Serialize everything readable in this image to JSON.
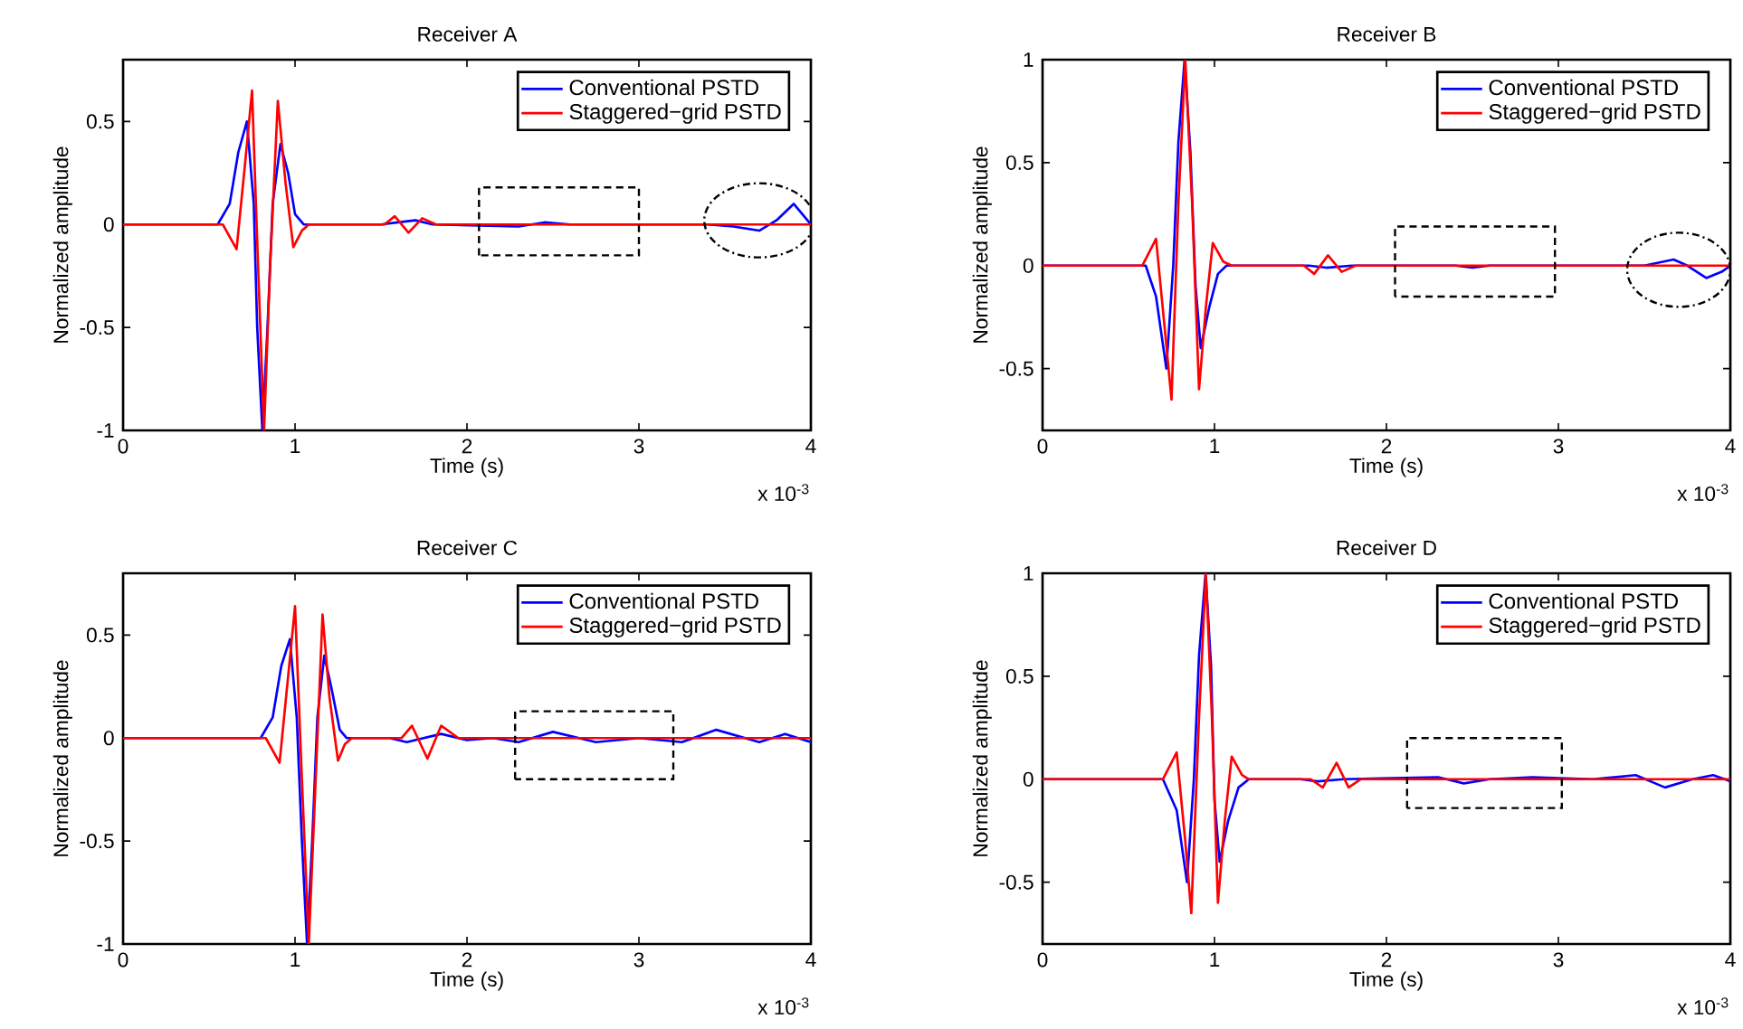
{
  "chart_data": [
    {
      "type": "line",
      "title": "Receiver A",
      "xlabel": "Time (s)",
      "ylabel": "Normalized amplitude",
      "annotations": [
        "x 10$^{-3}$"
      ],
      "legend": "top right",
      "xlim": [
        0,
        4
      ],
      "xticks": [
        0,
        1,
        2,
        3,
        4
      ],
      "ylim": [
        -1,
        0.8
      ],
      "yticks": [
        -1,
        -0.5,
        0,
        0.5
      ],
      "series": [
        {
          "name": "Conventional PSTD",
          "color": "#0000ff",
          "x": [
            0,
            0.55,
            0.62,
            0.67,
            0.72,
            0.76,
            0.78,
            0.81,
            0.84,
            0.87,
            0.915,
            0.96,
            1.0,
            1.05,
            1.5,
            1.6,
            1.7,
            1.8,
            2.3,
            2.45,
            2.6,
            3.4,
            3.55,
            3.7,
            3.8,
            3.9,
            4.0
          ],
          "values": [
            0,
            0,
            0.1,
            0.35,
            0.5,
            0.1,
            -0.5,
            -1,
            -0.5,
            0.1,
            0.39,
            0.25,
            0.05,
            0,
            0,
            0.01,
            0.02,
            0,
            -0.01,
            0.01,
            0,
            0,
            -0.01,
            -0.03,
            0.02,
            0.1,
            0
          ]
        },
        {
          "name": "Staggered−grid PSTD",
          "color": "#ff0000",
          "x": [
            0,
            0.58,
            0.66,
            0.71,
            0.75,
            0.785,
            0.82,
            0.855,
            0.9,
            0.945,
            0.99,
            1.04,
            1.08,
            1.52,
            1.58,
            1.66,
            1.74,
            1.82,
            4.0
          ],
          "values": [
            0,
            0,
            -0.12,
            0.3,
            0.65,
            -0.2,
            -1,
            -0.2,
            0.6,
            0.2,
            -0.11,
            -0.03,
            0,
            0,
            0.04,
            -0.04,
            0.03,
            0,
            0
          ]
        }
      ]
    },
    {
      "type": "line",
      "title": "Receiver B",
      "xlabel": "Time (s)",
      "ylabel": "Normalized amplitude",
      "annotations": [
        "x 10$^{-3}$"
      ],
      "legend": "top right",
      "xlim": [
        0,
        4
      ],
      "xticks": [
        0,
        1,
        2,
        3,
        4
      ],
      "ylim": [
        -0.8,
        1
      ],
      "yticks": [
        -0.5,
        0,
        0.5,
        1
      ],
      "series": [
        {
          "name": "Conventional PSTD",
          "color": "#0000ff",
          "x": [
            0,
            0.6,
            0.66,
            0.72,
            0.76,
            0.79,
            0.826,
            0.86,
            0.89,
            0.92,
            0.97,
            1.02,
            1.07,
            1.55,
            1.65,
            1.8,
            2.4,
            2.5,
            2.6,
            3.5,
            3.67,
            3.75,
            3.86,
            3.95,
            4.0
          ],
          "values": [
            0,
            0,
            -0.15,
            -0.5,
            0,
            0.6,
            1,
            0.55,
            -0.1,
            -0.4,
            -0.2,
            -0.04,
            0,
            0,
            -0.01,
            0,
            0,
            -0.01,
            0,
            0,
            0.03,
            0,
            -0.06,
            -0.03,
            0
          ]
        },
        {
          "name": "Staggered−grid PSTD",
          "color": "#ff0000",
          "x": [
            0,
            0.58,
            0.66,
            0.71,
            0.75,
            0.79,
            0.83,
            0.87,
            0.91,
            0.95,
            0.99,
            1.05,
            1.1,
            1.52,
            1.58,
            1.66,
            1.74,
            1.82,
            4.0
          ],
          "values": [
            0,
            0,
            0.13,
            -0.3,
            -0.65,
            0.3,
            1,
            0.3,
            -0.6,
            -0.2,
            0.11,
            0.02,
            0,
            0,
            -0.04,
            0.05,
            -0.03,
            0,
            0
          ]
        }
      ]
    },
    {
      "type": "line",
      "title": "Receiver C",
      "xlabel": "Time (s)",
      "ylabel": "Normalized amplitude",
      "annotations": [
        "x 10$^{-3}$"
      ],
      "legend": "top right",
      "xlim": [
        0,
        4
      ],
      "xticks": [
        0,
        1,
        2,
        3,
        4
      ],
      "ylim": [
        -1,
        0.8
      ],
      "yticks": [
        -1,
        -0.5,
        0,
        0.5
      ],
      "series": [
        {
          "name": "Conventional PSTD",
          "color": "#0000ff",
          "x": [
            0,
            0.8,
            0.87,
            0.92,
            0.97,
            1.01,
            1.04,
            1.07,
            1.1,
            1.13,
            1.17,
            1.21,
            1.26,
            1.3,
            1.55,
            1.65,
            1.85,
            2.0,
            2.15,
            2.3,
            2.5,
            2.75,
            3.0,
            3.25,
            3.45,
            3.7,
            3.85,
            4.0
          ],
          "values": [
            0,
            0,
            0.1,
            0.35,
            0.48,
            0.1,
            -0.5,
            -1,
            -0.5,
            0.1,
            0.4,
            0.25,
            0.04,
            0,
            0,
            -0.02,
            0.02,
            -0.01,
            0,
            -0.02,
            0.03,
            -0.02,
            0,
            -0.02,
            0.04,
            -0.02,
            0.02,
            -0.02
          ]
        },
        {
          "name": "Staggered−grid PSTD",
          "color": "#ff0000",
          "x": [
            0,
            0.83,
            0.91,
            0.96,
            1.0,
            1.04,
            1.08,
            1.12,
            1.16,
            1.2,
            1.25,
            1.29,
            1.33,
            1.62,
            1.68,
            1.77,
            1.85,
            1.95,
            4.0
          ],
          "values": [
            0,
            0,
            -0.12,
            0.3,
            0.64,
            -0.2,
            -1,
            -0.2,
            0.6,
            0.2,
            -0.11,
            -0.03,
            0,
            0,
            0.06,
            -0.1,
            0.06,
            0,
            0
          ]
        }
      ]
    },
    {
      "type": "line",
      "title": "Receiver D",
      "xlabel": "Time (s)",
      "ylabel": "Normalized amplitude",
      "annotations": [
        "x 10$^{-3}$"
      ],
      "legend": "top right",
      "xlim": [
        0,
        4
      ],
      "xticks": [
        0,
        1,
        2,
        3,
        4
      ],
      "ylim": [
        -0.8,
        1
      ],
      "yticks": [
        -0.5,
        0,
        0.5,
        1
      ],
      "series": [
        {
          "name": "Conventional PSTD",
          "color": "#0000ff",
          "x": [
            0,
            0.7,
            0.78,
            0.84,
            0.88,
            0.91,
            0.948,
            0.98,
            1.0,
            1.03,
            1.08,
            1.14,
            1.2,
            1.5,
            1.6,
            1.75,
            2.3,
            2.45,
            2.6,
            2.85,
            3.2,
            3.45,
            3.62,
            3.78,
            3.9,
            4.0
          ],
          "values": [
            0,
            0,
            -0.15,
            -0.5,
            0,
            0.6,
            1,
            0.55,
            -0.1,
            -0.4,
            -0.2,
            -0.04,
            0,
            0,
            -0.01,
            0,
            0.01,
            -0.02,
            0,
            0.01,
            0,
            0.02,
            -0.04,
            0,
            0.02,
            -0.01
          ]
        },
        {
          "name": "Staggered−grid PSTD",
          "color": "#ff0000",
          "x": [
            0,
            0.7,
            0.78,
            0.83,
            0.865,
            0.91,
            0.95,
            0.985,
            1.02,
            1.06,
            1.1,
            1.16,
            1.2,
            1.56,
            1.63,
            1.71,
            1.78,
            1.85,
            4.0
          ],
          "values": [
            0,
            0,
            0.13,
            -0.3,
            -0.65,
            0.3,
            1,
            0.3,
            -0.6,
            -0.2,
            0.11,
            0.02,
            0,
            0,
            -0.04,
            0.08,
            -0.04,
            0,
            0
          ]
        }
      ]
    }
  ]
}
